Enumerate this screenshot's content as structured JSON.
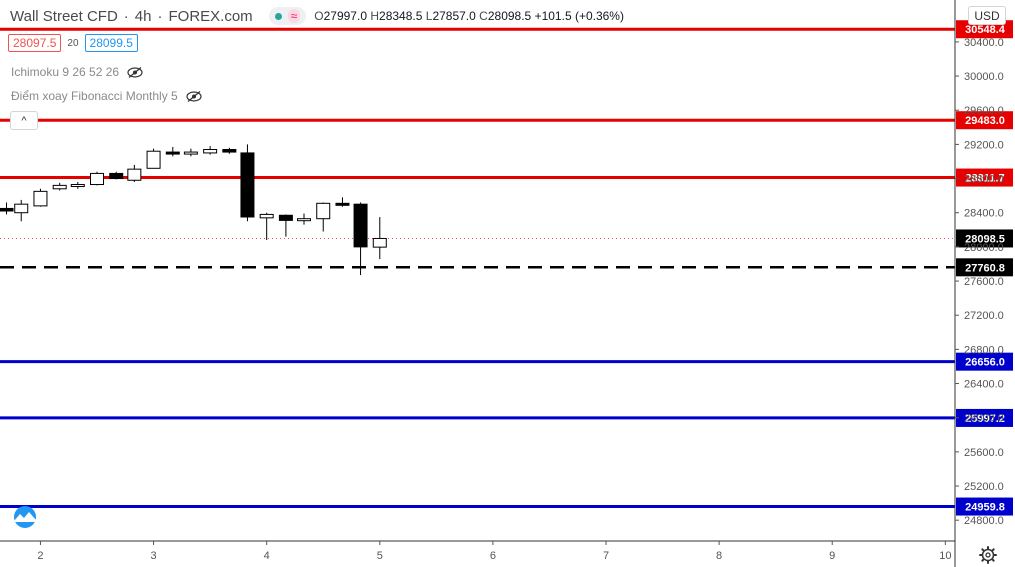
{
  "header": {
    "symbol": "Wall Street CFD",
    "interval": "4h",
    "source": "FOREX.com",
    "separator": "·",
    "wave_icon": "≈",
    "ohlc": {
      "open_label": "O",
      "open": "27997.0",
      "high_label": "H",
      "high": "28348.5",
      "low_label": "L",
      "low": "27857.0",
      "close_label": "C",
      "close": "28098.5",
      "change": "+101.5 (+0.36%)"
    }
  },
  "trade": {
    "sell_price": "28097.5",
    "spread": "20",
    "buy_price": "28099.5"
  },
  "indicators": [
    {
      "label": "Ichimoku 9 26 52 26",
      "icon": "eye-hidden-icon"
    },
    {
      "label": "Điểm xoay Fibonacci Monthly 5",
      "icon": "eye-hidden-icon"
    }
  ],
  "collapse_icon": "^",
  "currency": "USD",
  "colors": {
    "resistance": "#e60000",
    "support": "#0000cc",
    "bull_fill": "#ffffff",
    "bear_fill": "#000000",
    "axis_text": "#555555",
    "current_price_line": "#ef5350"
  },
  "chart_data": {
    "type": "candlestick",
    "x_ticks": [
      2,
      3,
      4,
      5,
      6,
      7,
      8,
      9,
      10
    ],
    "x_range": [
      1.66,
      10.05
    ],
    "y_ticks": [
      24800,
      25200,
      25600,
      26000,
      26400,
      26800,
      27200,
      27600,
      28000,
      28400,
      28800,
      29200,
      29600,
      30000,
      30400
    ],
    "y_range": [
      24650,
      30750
    ],
    "candles": [
      {
        "x": 1.7,
        "o": 28450,
        "h": 28520,
        "l": 28380,
        "c": 28420
      },
      {
        "x": 1.83,
        "o": 28400,
        "h": 28550,
        "l": 28300,
        "c": 28500
      },
      {
        "x": 2.0,
        "o": 28480,
        "h": 28680,
        "l": 28470,
        "c": 28650
      },
      {
        "x": 2.17,
        "o": 28680,
        "h": 28750,
        "l": 28660,
        "c": 28720
      },
      {
        "x": 2.33,
        "o": 28720,
        "h": 28760,
        "l": 28680,
        "c": 28730
      },
      {
        "x": 2.5,
        "o": 28730,
        "h": 28880,
        "l": 28720,
        "c": 28860
      },
      {
        "x": 2.67,
        "o": 28860,
        "h": 28880,
        "l": 28790,
        "c": 28800
      },
      {
        "x": 2.83,
        "o": 28780,
        "h": 28960,
        "l": 28760,
        "c": 28910
      },
      {
        "x": 3.0,
        "o": 28920,
        "h": 29150,
        "l": 28920,
        "c": 29120
      },
      {
        "x": 3.17,
        "o": 29110,
        "h": 29170,
        "l": 29060,
        "c": 29090
      },
      {
        "x": 3.33,
        "o": 29090,
        "h": 29150,
        "l": 29060,
        "c": 29110
      },
      {
        "x": 3.5,
        "o": 29100,
        "h": 29180,
        "l": 29080,
        "c": 29140
      },
      {
        "x": 3.67,
        "o": 29140,
        "h": 29160,
        "l": 29090,
        "c": 29110
      },
      {
        "x": 3.83,
        "o": 29100,
        "h": 29200,
        "l": 28300,
        "c": 28350
      },
      {
        "x": 4.0,
        "o": 28340,
        "h": 28400,
        "l": 28080,
        "c": 28380
      },
      {
        "x": 4.17,
        "o": 28370,
        "h": 28380,
        "l": 28120,
        "c": 28310
      },
      {
        "x": 4.33,
        "o": 28320,
        "h": 28390,
        "l": 28260,
        "c": 28330
      },
      {
        "x": 4.5,
        "o": 28330,
        "h": 28520,
        "l": 28180,
        "c": 28510
      },
      {
        "x": 4.67,
        "o": 28510,
        "h": 28580,
        "l": 28470,
        "c": 28490
      },
      {
        "x": 4.83,
        "o": 28500,
        "h": 28520,
        "l": 27670,
        "c": 28000
      },
      {
        "x": 5.0,
        "o": 27997,
        "h": 28348.5,
        "l": 27857,
        "c": 28098.5
      }
    ],
    "levels": [
      {
        "value": 30548.4,
        "label": "30548.4",
        "color": "#e60000",
        "style": "solid"
      },
      {
        "value": 29483.0,
        "label": "29483.0",
        "color": "#e60000",
        "style": "solid"
      },
      {
        "value": 28811.7,
        "label": "28811.7",
        "color": "#e60000",
        "style": "solid"
      },
      {
        "value": 28098.5,
        "label": "28098.5",
        "color": "#000000",
        "style": "dotted"
      },
      {
        "value": 27760.8,
        "label": "27760.8",
        "color": "#000000",
        "style": "dashed"
      },
      {
        "value": 26656.0,
        "label": "26656.0",
        "color": "#0000cc",
        "style": "solid"
      },
      {
        "value": 25997.2,
        "label": "25997.2",
        "color": "#0000cc",
        "style": "solid"
      },
      {
        "value": 24959.8,
        "label": "24959.8",
        "color": "#0000cc",
        "style": "solid"
      }
    ]
  }
}
